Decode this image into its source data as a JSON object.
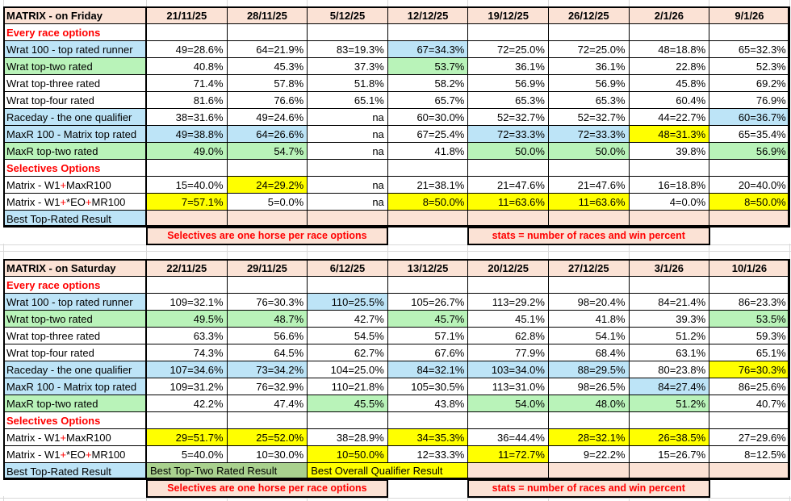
{
  "palette": {
    "pink": "#FBE2D5",
    "blue": "#BDE4F7",
    "green": "#B9F3B9",
    "green2": "#A9D18E",
    "yellow": "#FFFF00",
    "red": "#FF0000",
    "border": "#000000",
    "grid": "#D9D9D9"
  },
  "tables": [
    {
      "id": "friday",
      "title": "MATRIX - on Friday",
      "dates": [
        "21/11/25",
        "28/11/25",
        "5/12/25",
        "12/12/25",
        "19/12/25",
        "26/12/25",
        "2/1/26",
        "9/1/26"
      ],
      "rows": [
        {
          "type": "section",
          "label": "Every race options"
        },
        {
          "type": "data",
          "label": "Wrat 100 - top rated runner",
          "labelBg": "blue",
          "cells": [
            {
              "v": "49=28.6%"
            },
            {
              "v": "64=21.9%"
            },
            {
              "v": "83=19.3%"
            },
            {
              "v": "67=34.3%",
              "bg": "blue"
            },
            {
              "v": "72=25.0%"
            },
            {
              "v": "72=25.0%"
            },
            {
              "v": "48=18.8%"
            },
            {
              "v": "65=32.3%"
            }
          ]
        },
        {
          "type": "data",
          "label": "Wrat top-two rated",
          "labelBg": "green",
          "cells": [
            {
              "v": "40.8%"
            },
            {
              "v": "45.3%"
            },
            {
              "v": "37.3%"
            },
            {
              "v": "53.7%",
              "bg": "green"
            },
            {
              "v": "36.1%"
            },
            {
              "v": "36.1%"
            },
            {
              "v": "22.8%"
            },
            {
              "v": "52.3%"
            }
          ]
        },
        {
          "type": "data",
          "label": "Wrat top-three rated",
          "cells": [
            {
              "v": "71.4%"
            },
            {
              "v": "57.8%"
            },
            {
              "v": "51.8%"
            },
            {
              "v": "58.2%"
            },
            {
              "v": "56.9%"
            },
            {
              "v": "56.9%"
            },
            {
              "v": "45.8%"
            },
            {
              "v": "69.2%"
            }
          ]
        },
        {
          "type": "data",
          "label": "Wrat top-four rated",
          "cells": [
            {
              "v": "81.6%"
            },
            {
              "v": "76.6%"
            },
            {
              "v": "65.1%"
            },
            {
              "v": "65.7%"
            },
            {
              "v": "65.3%"
            },
            {
              "v": "65.3%"
            },
            {
              "v": "60.4%"
            },
            {
              "v": "76.9%"
            }
          ]
        },
        {
          "type": "data",
          "label": "Raceday - the one qualifier",
          "labelBg": "blue",
          "cells": [
            {
              "v": "38=31.6%"
            },
            {
              "v": "49=24.6%"
            },
            {
              "v": "na"
            },
            {
              "v": "60=30.0%"
            },
            {
              "v": "52=32.7%"
            },
            {
              "v": "52=32.7%"
            },
            {
              "v": "44=22.7%"
            },
            {
              "v": "60=36.7%",
              "bg": "blue"
            }
          ]
        },
        {
          "type": "data",
          "label": "MaxR 100 - Matrix top rated",
          "labelBg": "blue",
          "cells": [
            {
              "v": "49=38.8%",
              "bg": "blue"
            },
            {
              "v": "64=26.6%",
              "bg": "blue"
            },
            {
              "v": "na"
            },
            {
              "v": "67=25.4%"
            },
            {
              "v": "72=33.3%",
              "bg": "blue"
            },
            {
              "v": "72=33.3%",
              "bg": "blue"
            },
            {
              "v": "48=31.3%",
              "bg": "yellow"
            },
            {
              "v": "65=35.4%"
            }
          ]
        },
        {
          "type": "data",
          "label": "MaxR top-two rated",
          "labelBg": "green",
          "cells": [
            {
              "v": "49.0%",
              "bg": "green"
            },
            {
              "v": "54.7%",
              "bg": "green"
            },
            {
              "v": "na"
            },
            {
              "v": "41.8%"
            },
            {
              "v": "50.0%",
              "bg": "green"
            },
            {
              "v": "50.0%",
              "bg": "green"
            },
            {
              "v": "39.8%"
            },
            {
              "v": "56.9%",
              "bg": "green"
            }
          ]
        },
        {
          "type": "section",
          "label": "Selectives Options"
        },
        {
          "type": "data",
          "labelParts": [
            {
              "t": "Matrix - W1"
            },
            {
              "t": "+",
              "red": true
            },
            {
              "t": "MaxR100"
            }
          ],
          "cells": [
            {
              "v": "15=40.0%"
            },
            {
              "v": "24=29.2%",
              "bg": "yellow"
            },
            {
              "v": "na"
            },
            {
              "v": "21=38.1%"
            },
            {
              "v": "21=47.6%"
            },
            {
              "v": "21=47.6%"
            },
            {
              "v": "16=18.8%"
            },
            {
              "v": "20=40.0%"
            }
          ]
        },
        {
          "type": "data",
          "labelParts": [
            {
              "t": "Matrix - W1"
            },
            {
              "t": "+",
              "red": true
            },
            {
              "t": "*EO"
            },
            {
              "t": "+",
              "red": true
            },
            {
              "t": "MR100"
            }
          ],
          "cells": [
            {
              "v": "7=57.1%",
              "bg": "yellow"
            },
            {
              "v": "5=0.0%"
            },
            {
              "v": "na"
            },
            {
              "v": "8=50.0%",
              "bg": "yellow"
            },
            {
              "v": "11=63.6%",
              "bg": "yellow"
            },
            {
              "v": "11=63.6%",
              "bg": "yellow"
            },
            {
              "v": "4=0.0%"
            },
            {
              "v": "8=50.0%",
              "bg": "yellow"
            }
          ]
        },
        {
          "type": "best",
          "label": "Best Top-Rated Result",
          "labelBg": "blue",
          "cells": [
            {
              "v": "",
              "bg": "pink"
            },
            {
              "v": "",
              "bg": "pink"
            },
            {
              "v": "",
              "bg": "pink"
            },
            {
              "v": "",
              "bg": "pink"
            },
            {
              "v": "",
              "bg": "pink"
            },
            {
              "v": "",
              "bg": "pink"
            },
            {
              "v": "",
              "bg": "pink"
            },
            {
              "v": "",
              "bg": "pink"
            }
          ]
        },
        {
          "type": "footer",
          "cells": [
            {
              "span": 1,
              "plain": true,
              "v": ""
            },
            {
              "span": 3,
              "bg": "pink",
              "red": true,
              "v": "Selectives are one horse per race options"
            },
            {
              "span": 1,
              "plain": true,
              "v": ""
            },
            {
              "span": 3,
              "bg": "pink",
              "red": true,
              "v": "stats = number of races and win percent"
            },
            {
              "span": 1,
              "plain": true,
              "v": ""
            }
          ]
        }
      ]
    },
    {
      "id": "saturday",
      "title": "MATRIX - on Saturday",
      "dates": [
        "22/11/25",
        "29/11/25",
        "6/12/25",
        "13/12/25",
        "20/12/25",
        "27/12/25",
        "3/1/26",
        "10/1/26"
      ],
      "rows": [
        {
          "type": "section",
          "label": "Every race options"
        },
        {
          "type": "data",
          "label": "Wrat 100 - top rated runner",
          "labelBg": "blue",
          "cells": [
            {
              "v": "109=32.1%"
            },
            {
              "v": "76=30.3%"
            },
            {
              "v": "110=25.5%",
              "bg": "blue"
            },
            {
              "v": "105=26.7%"
            },
            {
              "v": "113=29.2%"
            },
            {
              "v": "98=20.4%"
            },
            {
              "v": "84=21.4%"
            },
            {
              "v": "86=23.3%"
            }
          ]
        },
        {
          "type": "data",
          "label": "Wrat top-two rated",
          "labelBg": "green",
          "cells": [
            {
              "v": "49.5%",
              "bg": "green"
            },
            {
              "v": "48.7%",
              "bg": "green"
            },
            {
              "v": "42.7%"
            },
            {
              "v": "45.7%",
              "bg": "green"
            },
            {
              "v": "45.1%"
            },
            {
              "v": "41.8%"
            },
            {
              "v": "39.3%"
            },
            {
              "v": "53.5%",
              "bg": "green"
            }
          ]
        },
        {
          "type": "data",
          "label": "Wrat top-three rated",
          "cells": [
            {
              "v": "63.3%"
            },
            {
              "v": "56.6%"
            },
            {
              "v": "54.5%"
            },
            {
              "v": "57.1%"
            },
            {
              "v": "62.8%"
            },
            {
              "v": "54.1%"
            },
            {
              "v": "51.2%"
            },
            {
              "v": "59.3%"
            }
          ]
        },
        {
          "type": "data",
          "label": "Wrat top-four rated",
          "cells": [
            {
              "v": "74.3%"
            },
            {
              "v": "64.5%"
            },
            {
              "v": "62.7%"
            },
            {
              "v": "67.6%"
            },
            {
              "v": "77.9%"
            },
            {
              "v": "68.4%"
            },
            {
              "v": "63.1%"
            },
            {
              "v": "65.1%"
            }
          ]
        },
        {
          "type": "data",
          "label": "Raceday - the one qualifier",
          "labelBg": "blue",
          "cells": [
            {
              "v": "107=34.6%",
              "bg": "blue"
            },
            {
              "v": "73=34.2%",
              "bg": "blue"
            },
            {
              "v": "104=25.0%"
            },
            {
              "v": "84=32.1%",
              "bg": "blue"
            },
            {
              "v": "103=34.0%",
              "bg": "blue"
            },
            {
              "v": "88=29.5%",
              "bg": "blue"
            },
            {
              "v": "80=23.8%"
            },
            {
              "v": "76=30.3%",
              "bg": "yellow"
            }
          ]
        },
        {
          "type": "data",
          "label": "MaxR 100 - Matrix top rated",
          "labelBg": "blue",
          "cells": [
            {
              "v": "109=31.2%"
            },
            {
              "v": "76=32.9%"
            },
            {
              "v": "110=21.8%"
            },
            {
              "v": "105=30.5%"
            },
            {
              "v": "113=31.0%"
            },
            {
              "v": "98=26.5%"
            },
            {
              "v": "84=27.4%",
              "bg": "blue"
            },
            {
              "v": "86=25.6%"
            }
          ]
        },
        {
          "type": "data",
          "label": "MaxR top-two rated",
          "labelBg": "green",
          "cells": [
            {
              "v": "42.2%"
            },
            {
              "v": "47.4%"
            },
            {
              "v": "45.5%",
              "bg": "green"
            },
            {
              "v": "43.8%"
            },
            {
              "v": "54.0%",
              "bg": "green"
            },
            {
              "v": "48.0%",
              "bg": "green"
            },
            {
              "v": "51.2%",
              "bg": "green"
            },
            {
              "v": "40.7%"
            }
          ]
        },
        {
          "type": "section",
          "label": "Selectives Options"
        },
        {
          "type": "data",
          "labelParts": [
            {
              "t": "Matrix - W1"
            },
            {
              "t": "+",
              "red": true
            },
            {
              "t": "MaxR100"
            }
          ],
          "cells": [
            {
              "v": "29=51.7%",
              "bg": "yellow"
            },
            {
              "v": "25=52.0%",
              "bg": "yellow"
            },
            {
              "v": "38=28.9%"
            },
            {
              "v": "34=35.3%",
              "bg": "yellow"
            },
            {
              "v": "36=44.4%"
            },
            {
              "v": "28=32.1%",
              "bg": "yellow"
            },
            {
              "v": "26=38.5%",
              "bg": "yellow"
            },
            {
              "v": "27=29.6%"
            }
          ]
        },
        {
          "type": "data",
          "labelParts": [
            {
              "t": "Matrix - W1"
            },
            {
              "t": "+",
              "red": true
            },
            {
              "t": "*EO"
            },
            {
              "t": "+",
              "red": true
            },
            {
              "t": "MR100"
            }
          ],
          "cells": [
            {
              "v": "5=40.0%"
            },
            {
              "v": "10=30.0%"
            },
            {
              "v": "10=50.0%",
              "bg": "yellow"
            },
            {
              "v": "12=33.3%"
            },
            {
              "v": "11=72.7%",
              "bg": "yellow"
            },
            {
              "v": "9=22.2%"
            },
            {
              "v": "15=26.7%"
            },
            {
              "v": "8=12.5%"
            }
          ]
        },
        {
          "type": "best",
          "label": "Best Top-Rated Result",
          "labelBg": "blue",
          "cells": [
            {
              "v": "Best Top-Two Rated Result",
              "bg": "green2",
              "span": 2,
              "left": true
            },
            {
              "v": "Best Overall Qualifier Result",
              "bg": "yellow",
              "span": 2,
              "left": true
            },
            {
              "v": "",
              "bg": "pink"
            },
            {
              "v": "",
              "bg": "pink"
            },
            {
              "v": "",
              "bg": "pink"
            },
            {
              "v": "",
              "bg": "pink"
            }
          ]
        },
        {
          "type": "footer",
          "cells": [
            {
              "span": 1,
              "plain": true,
              "v": ""
            },
            {
              "span": 3,
              "bg": "pink",
              "red": true,
              "v": "Selectives are one horse per race options"
            },
            {
              "span": 1,
              "plain": true,
              "v": ""
            },
            {
              "span": 3,
              "bg": "pink",
              "red": true,
              "v": "stats = number of races and win percent"
            },
            {
              "span": 1,
              "plain": true,
              "v": ""
            }
          ]
        }
      ]
    }
  ]
}
